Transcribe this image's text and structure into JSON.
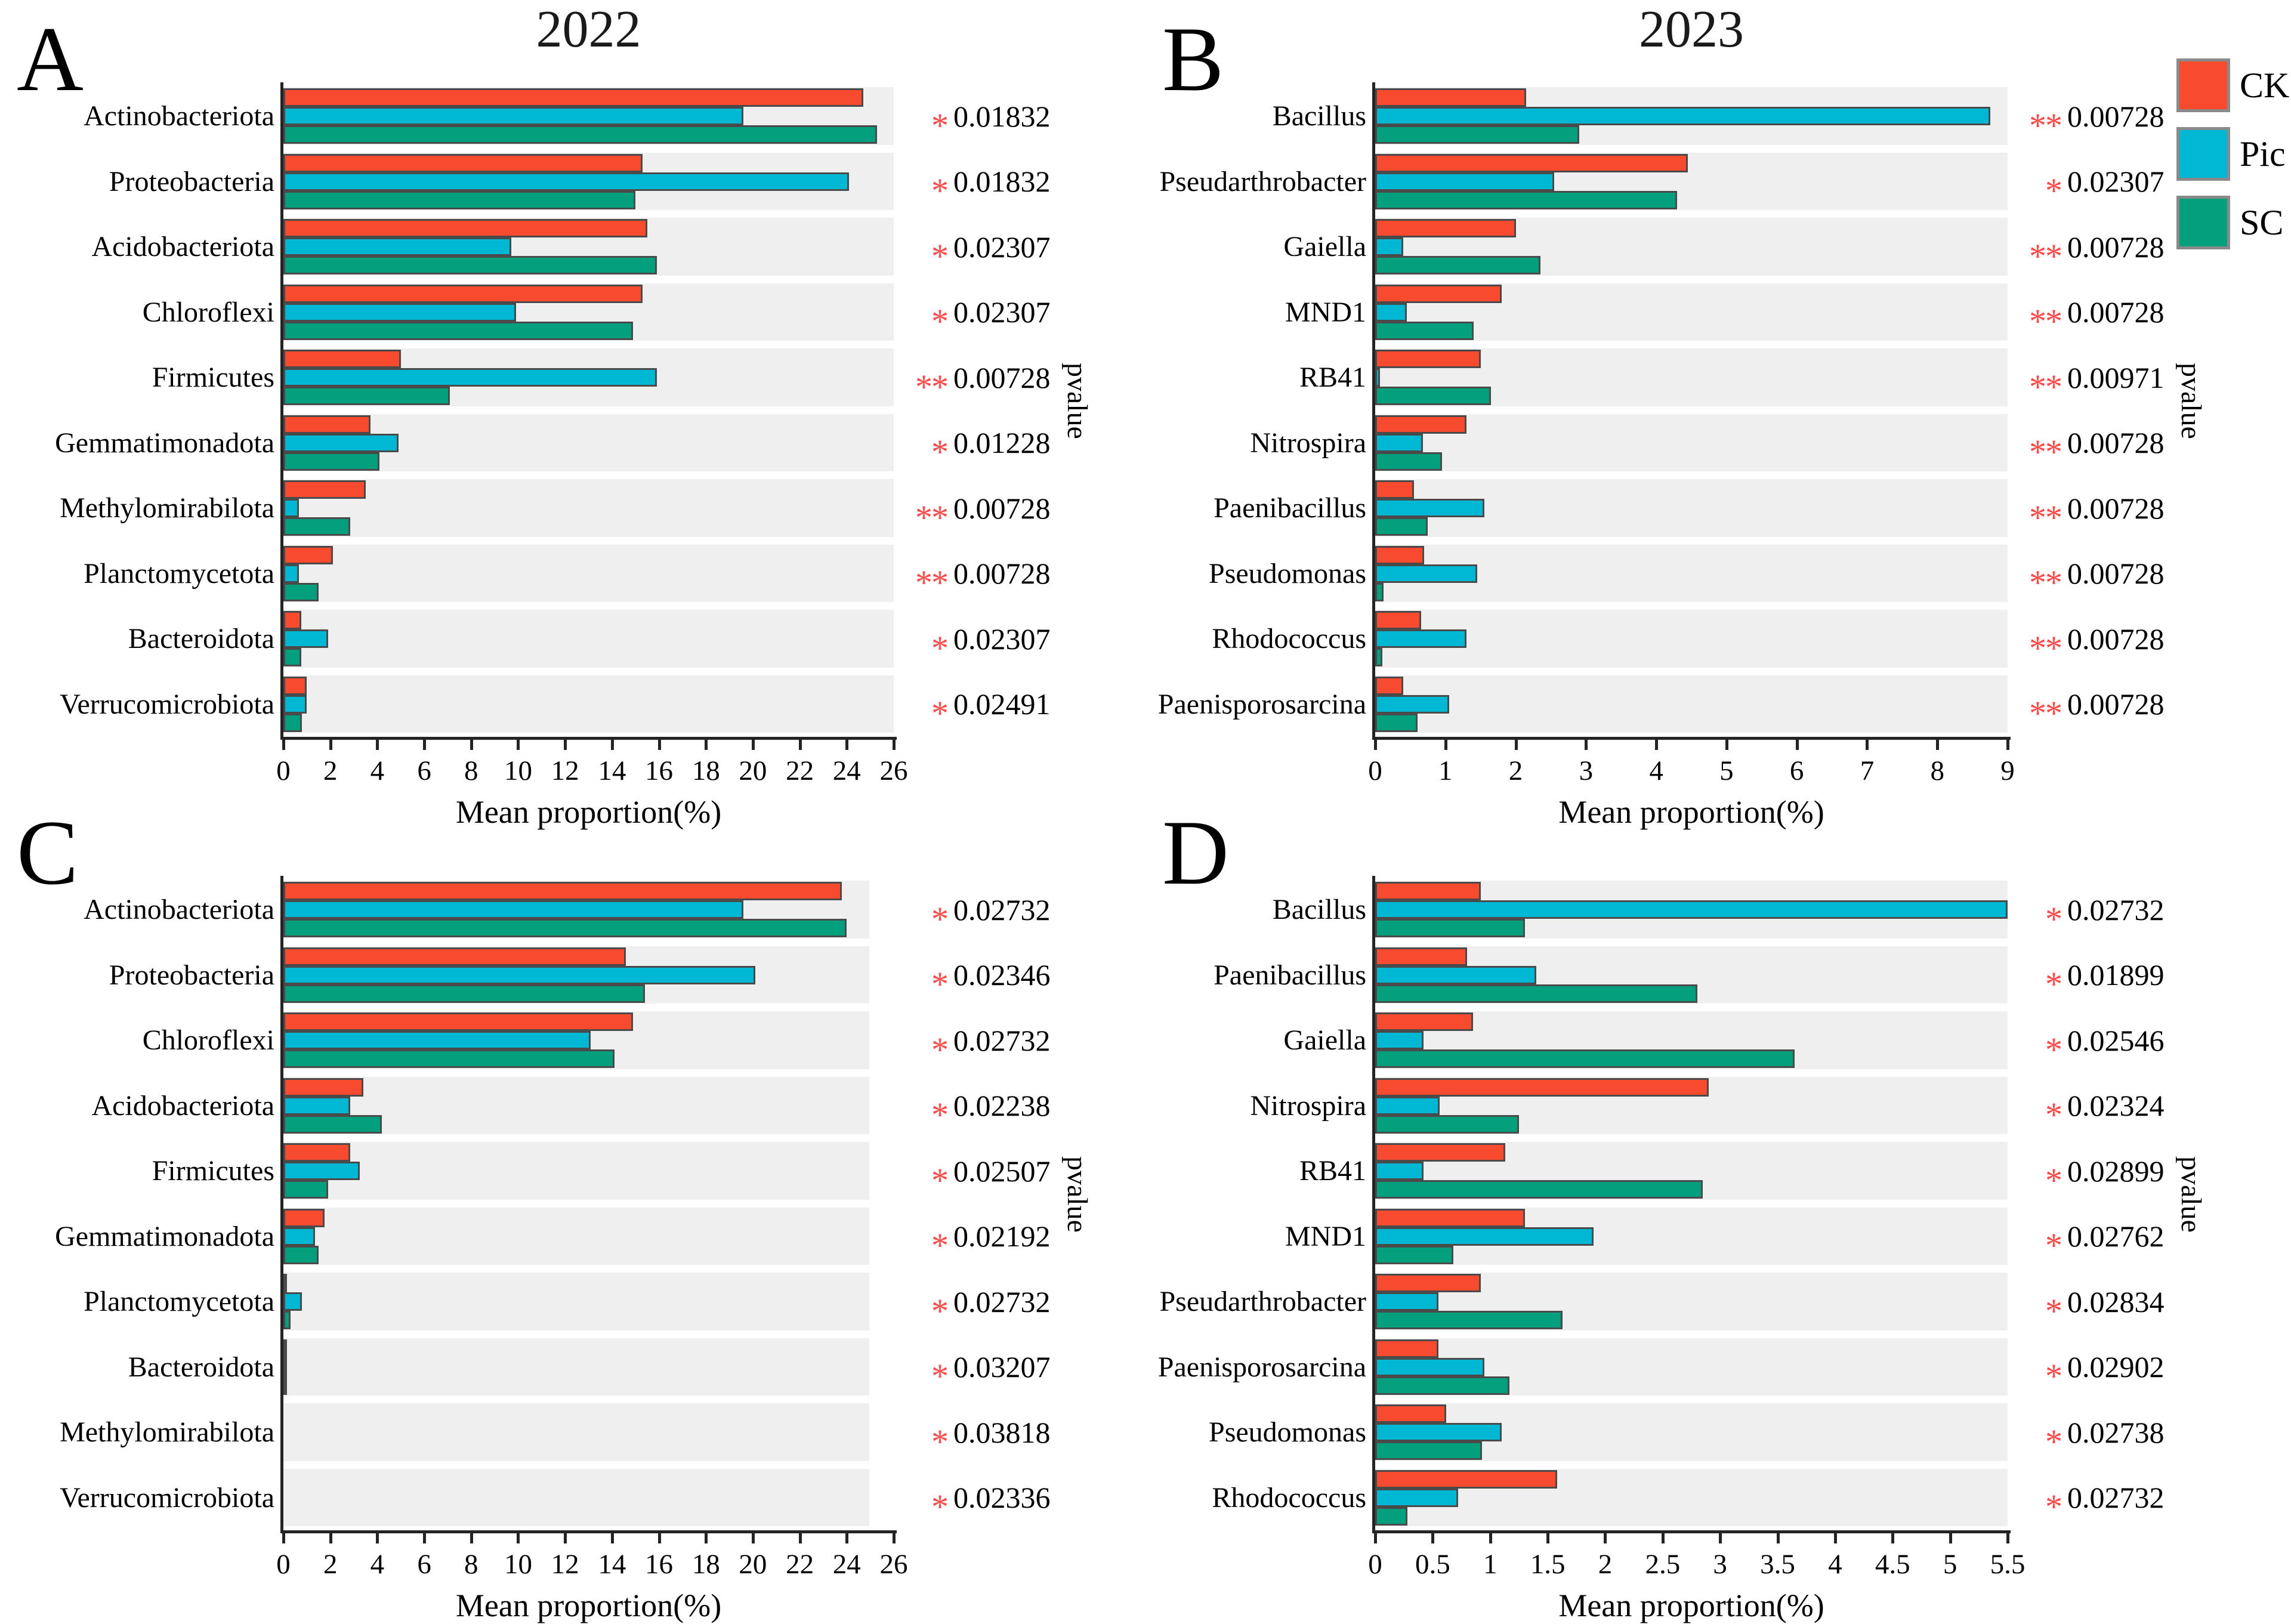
{
  "legend": {
    "items": [
      {
        "label": "CK",
        "color": "#F84A2E"
      },
      {
        "label": "Pic",
        "color": "#00B8D3"
      },
      {
        "label": "SC",
        "color": "#049F7C"
      }
    ]
  },
  "chart_data": [
    {
      "panel": "A",
      "panel_letter": "A",
      "title": "2022",
      "type": "bar",
      "orientation": "horizontal",
      "xlabel": "Mean proportion(%)",
      "right_axis_label": "pvalue",
      "xmax": 26,
      "bg_extent": 1,
      "xticks": [
        "0",
        "2",
        "4",
        "6",
        "8",
        "10",
        "12",
        "14",
        "16",
        "18",
        "20",
        "22",
        "24",
        "26"
      ],
      "series_names": [
        "CK",
        "Pic",
        "SC"
      ],
      "rows": [
        {
          "label": "Actinobacteriota",
          "values": [
            24.7,
            19.6,
            25.3
          ],
          "sig": "*",
          "pvalue": "0.01832"
        },
        {
          "label": "Proteobacteria",
          "values": [
            15.3,
            24.1,
            15.0
          ],
          "sig": "*",
          "pvalue": "0.01832"
        },
        {
          "label": "Acidobacteriota",
          "values": [
            15.5,
            9.7,
            15.9
          ],
          "sig": "*",
          "pvalue": "0.02307"
        },
        {
          "label": "Chloroflexi",
          "values": [
            15.3,
            9.9,
            14.9
          ],
          "sig": "*",
          "pvalue": "0.02307"
        },
        {
          "label": "Firmicutes",
          "values": [
            5.0,
            15.9,
            7.1
          ],
          "sig": "**",
          "pvalue": "0.00728"
        },
        {
          "label": "Gemmatimonadota",
          "values": [
            3.7,
            4.9,
            4.1
          ],
          "sig": "*",
          "pvalue": "0.01228"
        },
        {
          "label": "Methylomirabilota",
          "values": [
            3.5,
            0.65,
            2.85
          ],
          "sig": "**",
          "pvalue": "0.00728"
        },
        {
          "label": "Planctomycetota",
          "values": [
            2.1,
            0.65,
            1.5
          ],
          "sig": "**",
          "pvalue": "0.00728"
        },
        {
          "label": "Bacteroidota",
          "values": [
            0.75,
            1.9,
            0.75
          ],
          "sig": "*",
          "pvalue": "0.02307"
        },
        {
          "label": "Verrucomicrobiota",
          "values": [
            1.0,
            1.0,
            0.8
          ],
          "sig": "*",
          "pvalue": "0.02491"
        }
      ]
    },
    {
      "panel": "B",
      "panel_letter": "B",
      "title": "2023",
      "type": "bar",
      "orientation": "horizontal",
      "xlabel": "Mean proportion(%)",
      "right_axis_label": "pvalue",
      "xmax": 9,
      "bg_extent": 1,
      "xticks": [
        "0",
        "1",
        "2",
        "3",
        "4",
        "5",
        "6",
        "7",
        "8",
        "9"
      ],
      "series_names": [
        "CK",
        "Pic",
        "SC"
      ],
      "rows": [
        {
          "label": "Bacillus",
          "values": [
            2.15,
            8.75,
            2.9
          ],
          "sig": "**",
          "pvalue": "0.00728"
        },
        {
          "label": "Pseudarthrobacter",
          "values": [
            4.45,
            2.55,
            4.3
          ],
          "sig": "*",
          "pvalue": "0.02307"
        },
        {
          "label": "Gaiella",
          "values": [
            2.0,
            0.4,
            2.35
          ],
          "sig": "**",
          "pvalue": "0.00728"
        },
        {
          "label": "MND1",
          "values": [
            1.8,
            0.45,
            1.4
          ],
          "sig": "**",
          "pvalue": "0.00728"
        },
        {
          "label": "RB41",
          "values": [
            1.5,
            0.07,
            1.65
          ],
          "sig": "**",
          "pvalue": "0.00971"
        },
        {
          "label": "Nitrospira",
          "values": [
            1.3,
            0.68,
            0.95
          ],
          "sig": "**",
          "pvalue": "0.00728"
        },
        {
          "label": "Paenibacillus",
          "values": [
            0.55,
            1.55,
            0.75
          ],
          "sig": "**",
          "pvalue": "0.00728"
        },
        {
          "label": "Pseudomonas",
          "values": [
            0.7,
            1.45,
            0.12
          ],
          "sig": "**",
          "pvalue": "0.00728"
        },
        {
          "label": "Rhodococcus",
          "values": [
            0.65,
            1.3,
            0.1
          ],
          "sig": "**",
          "pvalue": "0.00728"
        },
        {
          "label": "Paenisporosarcina",
          "values": [
            0.4,
            1.05,
            0.6
          ],
          "sig": "**",
          "pvalue": "0.00728"
        }
      ]
    },
    {
      "panel": "C",
      "panel_letter": "C",
      "title": "",
      "type": "bar",
      "orientation": "horizontal",
      "xlabel": "Mean proportion(%)",
      "right_axis_label": "pvalue",
      "xmax": 26,
      "bg_extent": 0.96,
      "xticks": [
        "0",
        "2",
        "4",
        "6",
        "8",
        "10",
        "12",
        "14",
        "16",
        "18",
        "20",
        "22",
        "24",
        "26"
      ],
      "series_names": [
        "CK",
        "Pic",
        "SC"
      ],
      "rows": [
        {
          "label": "Actinobacteriota",
          "values": [
            23.8,
            19.6,
            24.0
          ],
          "sig": "*",
          "pvalue": "0.02732"
        },
        {
          "label": "Proteobacteria",
          "values": [
            14.6,
            20.1,
            15.4
          ],
          "sig": "*",
          "pvalue": "0.02346"
        },
        {
          "label": "Chloroflexi",
          "values": [
            14.9,
            13.1,
            14.1
          ],
          "sig": "*",
          "pvalue": "0.02732"
        },
        {
          "label": "Acidobacteriota",
          "values": [
            3.4,
            2.85,
            4.2
          ],
          "sig": "*",
          "pvalue": "0.02238"
        },
        {
          "label": "Firmicutes",
          "values": [
            2.85,
            3.25,
            1.9
          ],
          "sig": "*",
          "pvalue": "0.02507"
        },
        {
          "label": "Gemmatimonadota",
          "values": [
            1.75,
            1.35,
            1.5
          ],
          "sig": "*",
          "pvalue": "0.02192"
        },
        {
          "label": "Planctomycetota",
          "values": [
            0.15,
            0.8,
            0.3
          ],
          "sig": "*",
          "pvalue": "0.02732"
        },
        {
          "label": "Bacteroidota",
          "values": [
            0.05,
            0.04,
            0.04
          ],
          "sig": "*",
          "pvalue": "0.03207"
        },
        {
          "label": "Methylomirabilota",
          "values": [
            0,
            0,
            0
          ],
          "sig": "*",
          "pvalue": "0.03818"
        },
        {
          "label": "Verrucomicrobiota",
          "values": [
            0,
            0,
            0
          ],
          "sig": "*",
          "pvalue": "0.02336"
        }
      ]
    },
    {
      "panel": "D",
      "panel_letter": "D",
      "title": "",
      "type": "bar",
      "orientation": "horizontal",
      "xlabel": "Mean proportion(%)",
      "right_axis_label": "pvalue",
      "xmax": 5.5,
      "bg_extent": 1,
      "xticks": [
        "0",
        "0.5",
        "1",
        "1.5",
        "2",
        "2.5",
        "3",
        "3.5",
        "4",
        "4.5",
        "5",
        "5.5"
      ],
      "series_names": [
        "CK",
        "Pic",
        "SC"
      ],
      "rows": [
        {
          "label": "Bacillus",
          "values": [
            0.92,
            5.5,
            1.3
          ],
          "sig": "*",
          "pvalue": "0.02732"
        },
        {
          "label": "Paenibacillus",
          "values": [
            0.8,
            1.4,
            2.8
          ],
          "sig": "*",
          "pvalue": "0.01899"
        },
        {
          "label": "Gaiella",
          "values": [
            0.85,
            0.42,
            3.65
          ],
          "sig": "*",
          "pvalue": "0.02546"
        },
        {
          "label": "Nitrospira",
          "values": [
            2.9,
            0.56,
            1.25
          ],
          "sig": "*",
          "pvalue": "0.02324"
        },
        {
          "label": "RB41",
          "values": [
            1.13,
            0.42,
            2.85
          ],
          "sig": "*",
          "pvalue": "0.02899"
        },
        {
          "label": "MND1",
          "values": [
            1.3,
            1.9,
            0.68
          ],
          "sig": "*",
          "pvalue": "0.02762"
        },
        {
          "label": "Pseudarthrobacter",
          "values": [
            0.92,
            0.55,
            1.63
          ],
          "sig": "*",
          "pvalue": "0.02834"
        },
        {
          "label": "Paenisporosarcina",
          "values": [
            0.55,
            0.95,
            1.17
          ],
          "sig": "*",
          "pvalue": "0.02902"
        },
        {
          "label": "Pseudomonas",
          "values": [
            0.62,
            1.1,
            0.93
          ],
          "sig": "*",
          "pvalue": "0.02738"
        },
        {
          "label": "Rhodococcus",
          "values": [
            1.58,
            0.72,
            0.28
          ],
          "sig": "*",
          "pvalue": "0.02732"
        }
      ]
    }
  ]
}
